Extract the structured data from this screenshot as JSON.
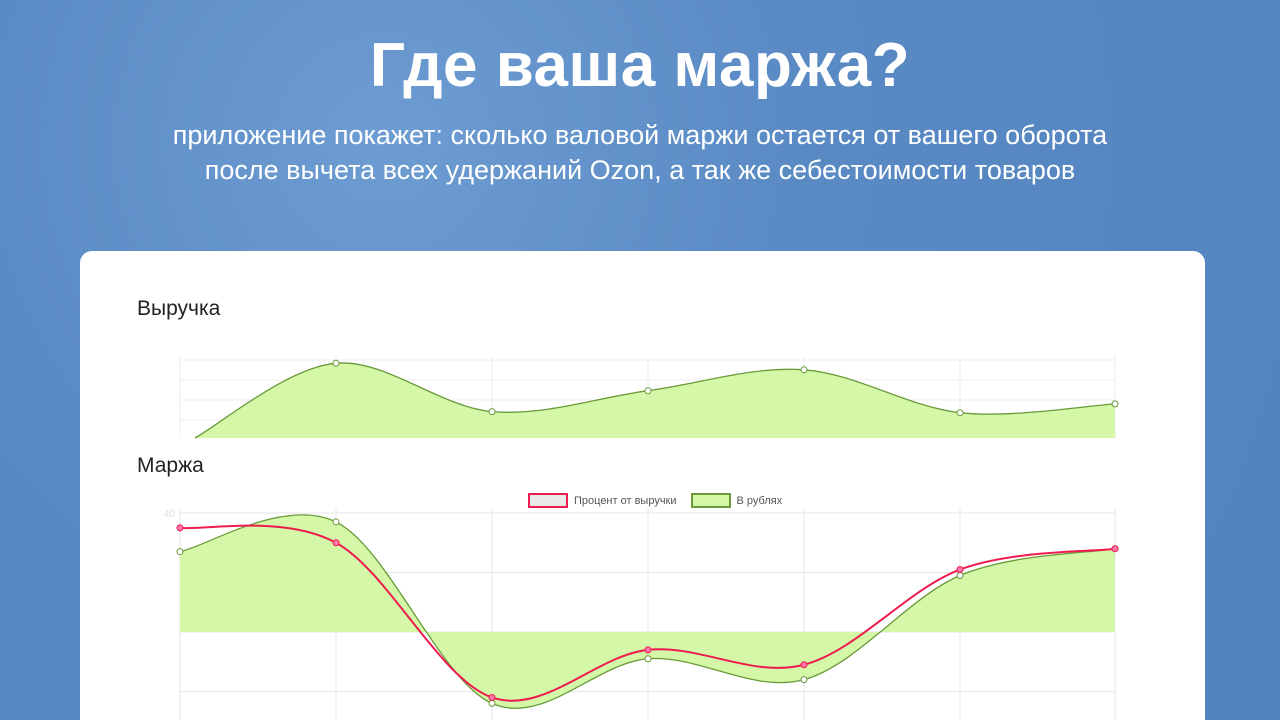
{
  "header": {
    "title": "Где ваша маржа?",
    "subtitle_line1": "приложение покажет: сколько валовой маржи остается от вашего оборота",
    "subtitle_line2": "после вычета всех удержаний Ozon, а так же себестоимости товаров"
  },
  "colors": {
    "background": "#5a8ac4",
    "rubles_fill": "#d4f8a8",
    "rubles_line": "#6a9a3a",
    "percent_line": "#ee1b4f"
  },
  "chart_data": [
    {
      "type": "area",
      "title": "Выручка",
      "series": [
        {
          "values": [
            0,
            68,
            24,
            43,
            62,
            23,
            31
          ]
        }
      ],
      "grid": true
    },
    {
      "type": "line",
      "title": "Маржа",
      "legend": "top-center",
      "grid": true,
      "y_tick_visible": "40",
      "ylim": [
        -30,
        45
      ],
      "series": [
        {
          "name": "Процент от выручки",
          "type": "line",
          "values": [
            35,
            30,
            -22,
            -6,
            -11,
            21,
            28
          ]
        },
        {
          "name": "В рублях",
          "type": "area",
          "values": [
            27,
            37,
            -24,
            -9,
            -16,
            19,
            28
          ]
        }
      ]
    }
  ]
}
